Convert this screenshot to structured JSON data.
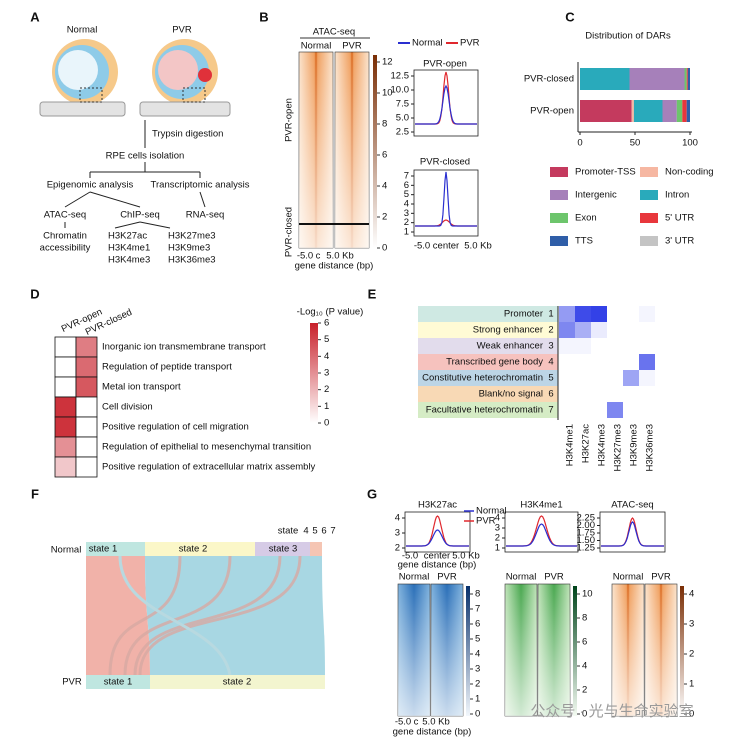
{
  "panels": {
    "A": {
      "label": "A",
      "normal": "Normal",
      "pvr": "PVR",
      "steps": [
        "Trypsin digestion",
        "RPE cells isolation"
      ],
      "analyses": [
        "Epigenomic analysis",
        "Transcriptomic analysis"
      ],
      "assays": [
        "ATAC-seq",
        "ChIP-seq",
        "RNA-seq"
      ],
      "chromatin": [
        "Chromatin",
        "accessibility"
      ],
      "marks_left": [
        "H3K27ac",
        "H3K4me1",
        "H3K4me3"
      ],
      "marks_right": [
        "H3K27me3",
        "H3K9me3",
        "H3K36me3"
      ]
    },
    "B": {
      "label": "B",
      "title": "ATAC-seq",
      "columns": [
        "Normal",
        "PVR"
      ],
      "rows": [
        "PVR-open",
        "PVR-closed"
      ],
      "colorbar_ticks": [
        0,
        2,
        4,
        6,
        8,
        10,
        12
      ],
      "x_labels": [
        "-5.0",
        "c",
        "5.0 Kb"
      ],
      "x_title": "gene distance (bp)",
      "legend": [
        "Normal",
        "PVR"
      ],
      "profiles": [
        {
          "title": "PVR-open",
          "yticks": [
            "2.5",
            "5.0",
            "7.5",
            "10.0",
            "12.5"
          ]
        },
        {
          "title": "PVR-closed",
          "yticks": [
            1,
            2,
            3,
            4,
            5,
            6,
            7
          ]
        }
      ],
      "profile_x_labels": [
        "-5.0",
        "center",
        "5.0 Kb"
      ]
    },
    "C": {
      "label": "C",
      "title": "Distribution of DARs",
      "axis_ticks": [
        0,
        50,
        100
      ],
      "legend": [
        {
          "name": "Promoter-TSS",
          "color": "#c43a5e"
        },
        {
          "name": "Non-coding",
          "color": "#f6b7a2"
        },
        {
          "name": "Intergenic",
          "color": "#a680ba"
        },
        {
          "name": "Intron",
          "color": "#29aabb"
        },
        {
          "name": "Exon",
          "color": "#6dc56c"
        },
        {
          "name": "5' UTR",
          "color": "#e8373c"
        },
        {
          "name": "TTS",
          "color": "#2f5ea8"
        },
        {
          "name": "3' UTR",
          "color": "#c4c4c4"
        }
      ],
      "bars": [
        {
          "name": "PVR-closed",
          "segments": [
            {
              "name": "Intron",
              "value": 45
            },
            {
              "name": "Intergenic",
              "value": 50
            },
            {
              "name": "Exon",
              "value": 2
            },
            {
              "name": "5' UTR",
              "value": 1
            },
            {
              "name": "TTS",
              "value": 2
            }
          ]
        },
        {
          "name": "PVR-open",
          "segments": [
            {
              "name": "Promoter-TSS",
              "value": 47
            },
            {
              "name": "Non-coding",
              "value": 2
            },
            {
              "name": "Intron",
              "value": 26
            },
            {
              "name": "Intergenic",
              "value": 13
            },
            {
              "name": "Exon",
              "value": 5
            },
            {
              "name": "5' UTR",
              "value": 4
            },
            {
              "name": "TTS",
              "value": 3
            }
          ]
        }
      ]
    },
    "D": {
      "label": "D",
      "columns": [
        "PVR-open",
        "PVR-closed"
      ],
      "terms": [
        "Inorganic ion transmembrane transport",
        "Regulation of peptide transport",
        "Metal ion transport",
        "Cell division",
        "Positive regulation of cell migration",
        "Regulation of epithelial to mesenchymal transition",
        "Positive regulation of extracellular matrix assembly"
      ],
      "values": [
        [
          0,
          3.5
        ],
        [
          0,
          4
        ],
        [
          0,
          4.5
        ],
        [
          5.5,
          0
        ],
        [
          5.5,
          0
        ],
        [
          3,
          0
        ],
        [
          1.5,
          0
        ]
      ],
      "colorbar_title": "-Log₁₀ (P value)",
      "colorbar_ticks": [
        6,
        5,
        4,
        3,
        2,
        1,
        0
      ]
    },
    "E": {
      "label": "E",
      "states": [
        {
          "name": "Promoter",
          "number": 1,
          "color": "#cfe9e3"
        },
        {
          "name": "Strong enhancer",
          "number": 2,
          "color": "#fffbd5"
        },
        {
          "name": "Weak enhancer",
          "number": 3,
          "color": "#e2dcec"
        },
        {
          "name": "Transcribed gene body",
          "number": 4,
          "color": "#f6c2be"
        },
        {
          "name": "Constitutive heterochromatin",
          "number": 5,
          "color": "#bcd5e6"
        },
        {
          "name": "Blank/no signal",
          "number": 6,
          "color": "#f8d9b5"
        },
        {
          "name": "Facultative heterochromatin",
          "number": 7,
          "color": "#d5ecc5"
        }
      ],
      "marks": [
        "H3K4me1",
        "H3K27ac",
        "H3K4me3",
        "H3K27me3",
        "H3K9me3",
        "H3K36me3"
      ],
      "values": [
        [
          0.5,
          0.9,
          0.95,
          0,
          0,
          0.05
        ],
        [
          0.6,
          0.4,
          0.1,
          0,
          0,
          0
        ],
        [
          0.05,
          0.05,
          0,
          0,
          0,
          0
        ],
        [
          0,
          0,
          0,
          0,
          0,
          0.7
        ],
        [
          0,
          0,
          0,
          0,
          0.45,
          0.05
        ],
        [
          0,
          0,
          0,
          0,
          0,
          0
        ],
        [
          0,
          0,
          0,
          0.6,
          0,
          0
        ]
      ]
    },
    "F": {
      "label": "F",
      "normal": "Normal",
      "pvr": "PVR",
      "normal_states": [
        "state 1",
        "state 2",
        "state 3"
      ],
      "small_states_label": "state",
      "small_states": [
        4,
        5,
        6,
        7
      ],
      "pvr_states": [
        "state 1",
        "state 2"
      ]
    },
    "G": {
      "label": "G",
      "legend": [
        "Normal",
        "PVR"
      ],
      "profiles": [
        {
          "title": "H3K27ac",
          "yticks": [
            2,
            3,
            4
          ]
        },
        {
          "title": "H3K4me1",
          "yticks": [
            1,
            2,
            3,
            4
          ]
        },
        {
          "title": "ATAC-seq",
          "yticks": [
            "1.25",
            "1.50",
            "1.75",
            "2.00",
            "2.25"
          ]
        }
      ],
      "profile_x_labels": [
        "-5.0",
        "center",
        "5.0 Kb"
      ],
      "profile_x_title": "gene distance (bp)",
      "columns": [
        "Normal",
        "PVR"
      ],
      "colorbars": [
        [
          0,
          1,
          2,
          3,
          4,
          5,
          6,
          7,
          8
        ],
        [
          0,
          2,
          4,
          6,
          8,
          10
        ],
        [
          0,
          1,
          2,
          3,
          4
        ]
      ],
      "x_labels": [
        "-5.0",
        "c",
        "5.0 Kb"
      ],
      "x_title": "gene distance (bp)"
    },
    "watermark": "公众号 · 光与生命实验室"
  }
}
